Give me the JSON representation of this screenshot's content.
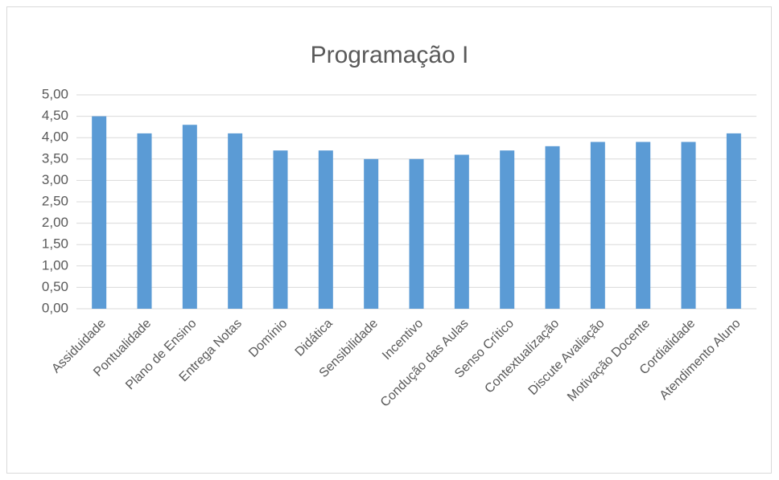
{
  "chart_data": {
    "type": "bar",
    "title": "Programação I",
    "categories": [
      "Assiduidade",
      "Pontualidade",
      "Plano de Ensino",
      "Entrega Notas",
      "Domínio",
      "Didática",
      "Sensibilidade",
      "Incentivo",
      "Condução das Aulas",
      "Senso Crítico",
      "Contextualização",
      "Discute Avaliação",
      "Motivação Docente",
      "Cordialidade",
      "Atendimento Aluno"
    ],
    "values": [
      4.5,
      4.1,
      4.3,
      4.1,
      3.7,
      3.7,
      3.5,
      3.5,
      3.6,
      3.7,
      3.8,
      3.9,
      3.9,
      3.9,
      4.1
    ],
    "color": "#5b9bd5",
    "ylim": [
      0,
      5
    ],
    "yticks": [
      {
        "value": 0,
        "label": "0,00"
      },
      {
        "value": 0.5,
        "label": "0,50"
      },
      {
        "value": 1,
        "label": "1,00"
      },
      {
        "value": 1.5,
        "label": "1,50"
      },
      {
        "value": 2,
        "label": "2,00"
      },
      {
        "value": 2.5,
        "label": "2,50"
      },
      {
        "value": 3,
        "label": "3,00"
      },
      {
        "value": 3.5,
        "label": "3,50"
      },
      {
        "value": 4,
        "label": "4,00"
      },
      {
        "value": 4.5,
        "label": "4,50"
      },
      {
        "value": 5,
        "label": "5,00"
      }
    ],
    "grid": true
  }
}
